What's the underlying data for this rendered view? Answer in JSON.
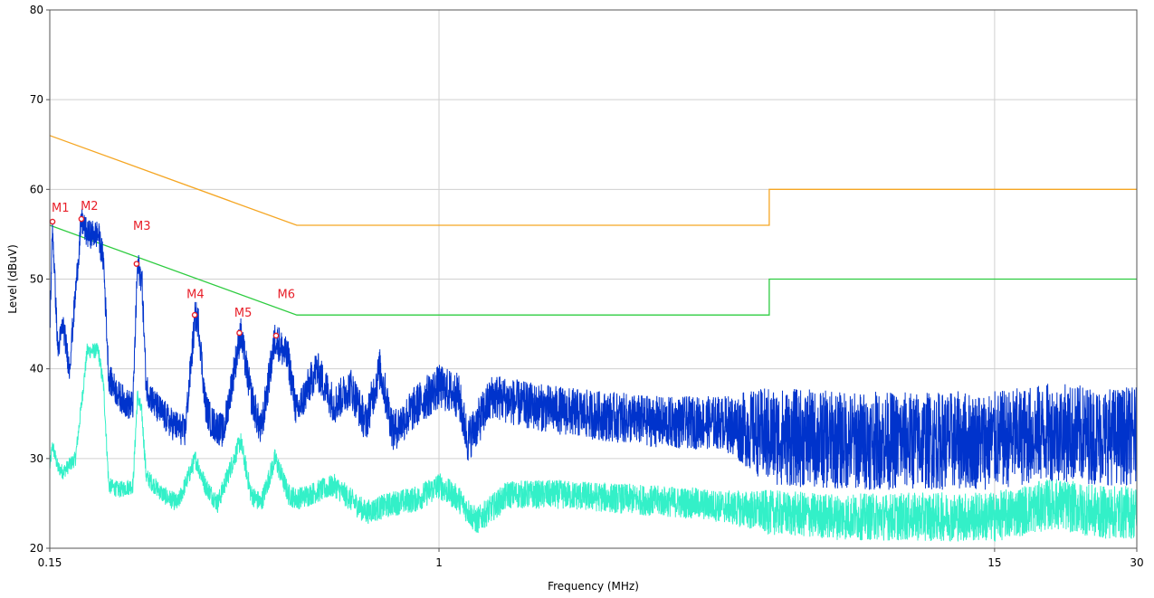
{
  "chart_data": {
    "type": "line",
    "xlabel": "Frequency (MHz)",
    "ylabel": "Level (dBuV)",
    "xscale": "log",
    "xlim": [
      0.15,
      30
    ],
    "ylim": [
      20,
      80
    ],
    "x_ticks": [
      0.15,
      1,
      15,
      30
    ],
    "x_tick_labels": [
      "0.15",
      "1",
      "15",
      "30"
    ],
    "y_ticks": [
      20,
      30,
      40,
      50,
      60,
      70,
      80
    ],
    "y_tick_labels": [
      "20",
      "30",
      "40",
      "50",
      "60",
      "70",
      "80"
    ],
    "grid": true,
    "colors": {
      "quasi_peak_limit": "#f5a623",
      "average_limit": "#2ecc40",
      "peak_trace": "#0033cc",
      "average_trace": "#33f0c8",
      "markers": "#e8202a",
      "grid": "#d0d0d0"
    },
    "limit_lines": [
      {
        "color_key": "quasi_peak_limit",
        "points": [
          [
            0.15,
            66
          ],
          [
            0.5,
            56
          ],
          [
            5,
            56
          ],
          [
            5,
            60
          ],
          [
            30,
            60
          ]
        ]
      },
      {
        "color_key": "average_limit",
        "points": [
          [
            0.15,
            56
          ],
          [
            0.5,
            46
          ],
          [
            5,
            46
          ],
          [
            5,
            50
          ],
          [
            30,
            50
          ]
        ]
      }
    ],
    "traces": [
      {
        "color_key": "peak_trace",
        "envelope": [
          [
            0.15,
            44
          ],
          [
            0.152,
            56
          ],
          [
            0.156,
            42
          ],
          [
            0.16,
            45
          ],
          [
            0.165,
            40
          ],
          [
            0.175,
            56.5
          ],
          [
            0.18,
            55
          ],
          [
            0.19,
            55
          ],
          [
            0.195,
            52
          ],
          [
            0.2,
            39
          ],
          [
            0.21,
            37
          ],
          [
            0.22,
            36
          ],
          [
            0.225,
            36
          ],
          [
            0.23,
            51.5
          ],
          [
            0.235,
            50
          ],
          [
            0.24,
            38
          ],
          [
            0.25,
            36
          ],
          [
            0.27,
            34
          ],
          [
            0.29,
            33
          ],
          [
            0.305,
            46
          ],
          [
            0.31,
            45
          ],
          [
            0.32,
            36
          ],
          [
            0.33,
            34
          ],
          [
            0.35,
            33
          ],
          [
            0.38,
            44
          ],
          [
            0.4,
            37
          ],
          [
            0.42,
            33
          ],
          [
            0.45,
            43.5
          ],
          [
            0.48,
            41
          ],
          [
            0.5,
            35
          ],
          [
            0.55,
            40
          ],
          [
            0.6,
            36
          ],
          [
            0.65,
            38
          ],
          [
            0.7,
            34
          ],
          [
            0.75,
            40
          ],
          [
            0.8,
            33
          ],
          [
            0.9,
            36
          ],
          [
            1,
            38
          ],
          [
            1.1,
            37
          ],
          [
            1.15,
            32
          ],
          [
            1.3,
            37
          ],
          [
            1.5,
            36
          ],
          [
            2,
            35
          ],
          [
            3,
            34
          ],
          [
            4,
            34
          ],
          [
            5,
            32.5
          ],
          [
            7,
            32
          ],
          [
            10,
            32
          ],
          [
            15,
            32
          ],
          [
            20,
            33
          ],
          [
            25,
            32.5
          ],
          [
            30,
            32.5
          ]
        ],
        "noise_amplitude": [
          [
            0.15,
            1.5
          ],
          [
            1,
            2.5
          ],
          [
            4,
            3
          ],
          [
            5,
            5.5
          ],
          [
            30,
            5.5
          ]
        ]
      },
      {
        "color_key": "average_trace",
        "envelope": [
          [
            0.15,
            29
          ],
          [
            0.152,
            31.5
          ],
          [
            0.156,
            29
          ],
          [
            0.16,
            28.5
          ],
          [
            0.17,
            30
          ],
          [
            0.175,
            36
          ],
          [
            0.18,
            42
          ],
          [
            0.19,
            42
          ],
          [
            0.195,
            38
          ],
          [
            0.2,
            27
          ],
          [
            0.21,
            26.5
          ],
          [
            0.225,
            27
          ],
          [
            0.23,
            37
          ],
          [
            0.235,
            35
          ],
          [
            0.24,
            28
          ],
          [
            0.26,
            26
          ],
          [
            0.28,
            25
          ],
          [
            0.305,
            30
          ],
          [
            0.32,
            27
          ],
          [
            0.34,
            25
          ],
          [
            0.38,
            32
          ],
          [
            0.4,
            26
          ],
          [
            0.42,
            25
          ],
          [
            0.45,
            30
          ],
          [
            0.48,
            26
          ],
          [
            0.5,
            25.5
          ],
          [
            0.6,
            27
          ],
          [
            0.7,
            24
          ],
          [
            0.8,
            25
          ],
          [
            0.9,
            25.5
          ],
          [
            1,
            27
          ],
          [
            1.1,
            25.5
          ],
          [
            1.2,
            23
          ],
          [
            1.4,
            26
          ],
          [
            1.8,
            26
          ],
          [
            2.5,
            25.5
          ],
          [
            3.5,
            25
          ],
          [
            5,
            24
          ],
          [
            7,
            23.5
          ],
          [
            10,
            23.5
          ],
          [
            15,
            23.5
          ],
          [
            20,
            25
          ],
          [
            25,
            24
          ],
          [
            30,
            24
          ]
        ],
        "noise_amplitude": [
          [
            0.15,
            0.8
          ],
          [
            1,
            1.5
          ],
          [
            4,
            1.8
          ],
          [
            5,
            2.5
          ],
          [
            30,
            3
          ]
        ]
      }
    ],
    "markers": [
      {
        "label": "M1",
        "x": 0.152,
        "y": 56.4
      },
      {
        "label": "M2",
        "x": 0.175,
        "y": 56.7
      },
      {
        "label": "M3",
        "x": 0.229,
        "y": 51.7
      },
      {
        "label": "M4",
        "x": 0.304,
        "y": 46
      },
      {
        "label": "M5",
        "x": 0.378,
        "y": 44
      },
      {
        "label": "M6",
        "x": 0.452,
        "y": 43.7
      }
    ],
    "marker_label_positions": {
      "M1": [
        0.158,
        57.5
      ],
      "M2": [
        0.182,
        57.7
      ],
      "M3": [
        0.235,
        55.5
      ],
      "M4": [
        0.305,
        47.9
      ],
      "M5": [
        0.385,
        45.8
      ],
      "M6": [
        0.475,
        47.9
      ]
    }
  }
}
